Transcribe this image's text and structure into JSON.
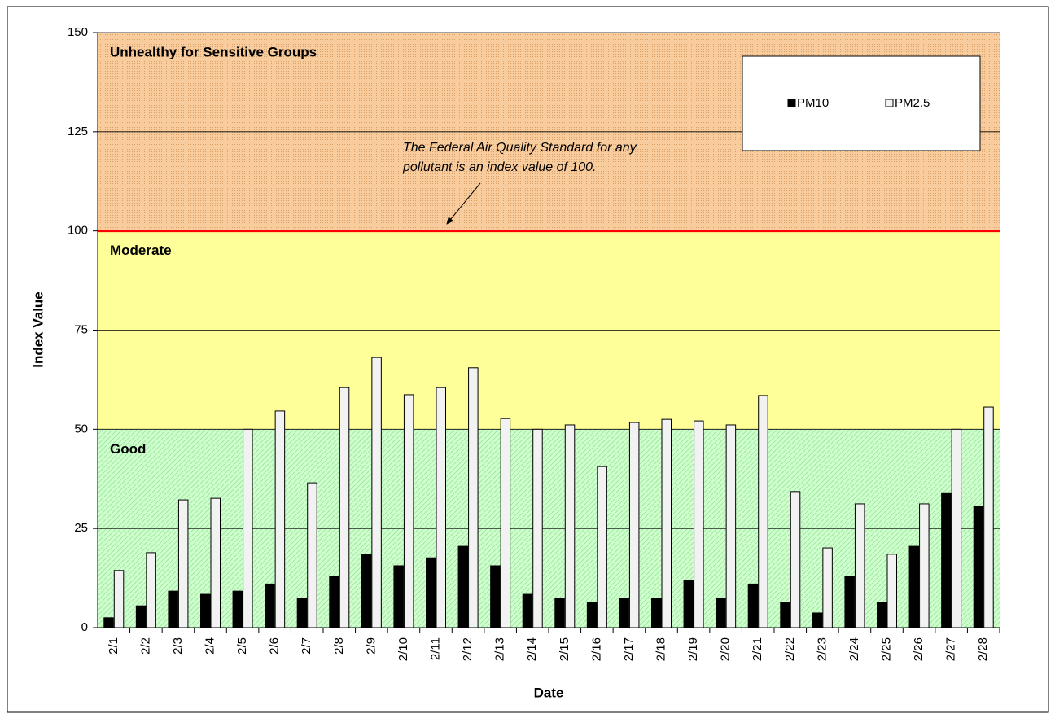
{
  "chart_data": {
    "type": "bar",
    "x_label": "Date",
    "y_label": "Index Value",
    "categories": [
      "2/1",
      "2/2",
      "2/3",
      "2/4",
      "2/5",
      "2/6",
      "2/7",
      "2/8",
      "2/9",
      "2/10",
      "2/11",
      "2/12",
      "2/13",
      "2/14",
      "2/15",
      "2/16",
      "2/17",
      "2/18",
      "2/19",
      "2/20",
      "2/21",
      "2/22",
      "2/23",
      "2/24",
      "2/25",
      "2/26",
      "2/27",
      "2/28"
    ],
    "series": [
      {
        "name": "PM10",
        "color": "#000000",
        "values": [
          2.5,
          5.5,
          9.2,
          8.4,
          9.2,
          11,
          7.4,
          13,
          18.5,
          15.6,
          17.6,
          20.5,
          15.6,
          8.4,
          7.4,
          6.4,
          7.4,
          7.4,
          11.9,
          7.4,
          11,
          6.4,
          3.7,
          13,
          6.4,
          20.5,
          34,
          30.5
        ]
      },
      {
        "name": "PM2.5",
        "color": "#f2f2f2",
        "values": [
          14.4,
          18.9,
          32.2,
          32.6,
          50,
          54.6,
          36.5,
          60.5,
          68.1,
          58.7,
          60.5,
          65.5,
          52.7,
          50,
          51.1,
          40.6,
          51.7,
          52.5,
          52.1,
          51.1,
          58.5,
          34.3,
          20.1,
          31.2,
          18.5,
          31.2,
          50,
          55.6
        ]
      }
    ],
    "ylim": [
      0,
      150
    ],
    "yticks": [
      0,
      25,
      50,
      75,
      100,
      125,
      150
    ],
    "grid": true,
    "legend": "top-right",
    "bands": [
      {
        "label": "Good",
        "from": 0,
        "to": 50,
        "color": "#ccffcc",
        "label_color": "#008000"
      },
      {
        "label": "Moderate",
        "from": 50,
        "to": 100,
        "color": "#ffff99",
        "label_color": "#ff9900"
      },
      {
        "label": "Unhealthy for Sensitive Groups",
        "from": 100,
        "to": 150,
        "color": "#f8cc9c",
        "label_color": "#ff0000"
      }
    ],
    "standard": {
      "value": 100,
      "color": "#ff0000"
    },
    "annotation": [
      "The Federal Air Quality Standard for any",
      "pollutant is an index value of 100."
    ]
  }
}
